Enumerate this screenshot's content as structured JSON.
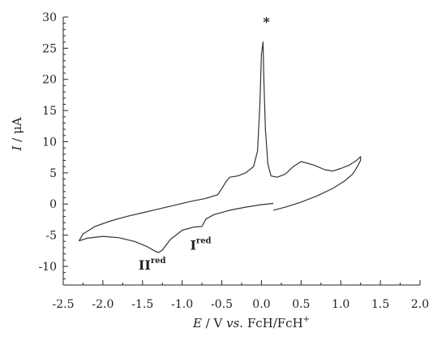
{
  "chart_data": {
    "type": "line",
    "title": "",
    "xlabel": {
      "italic": "E",
      "unit": " / V ",
      "vs": "vs",
      "ref": ". FcH/FcH",
      "sup": "+"
    },
    "ylabel": {
      "italic": "I",
      "unit": " / μA"
    },
    "xlim": [
      -2.5,
      2.0
    ],
    "ylim": [
      -13,
      30
    ],
    "xticks": [
      -2.5,
      -2.0,
      -1.5,
      -1.0,
      -0.5,
      0.0,
      0.5,
      1.0,
      1.5,
      2.0
    ],
    "xtick_labels": [
      "-2.5",
      "-2.0",
      "-1.5",
      "-1.0",
      "-0.5",
      "0.0",
      "0.5",
      "1.0",
      "1.5",
      "2.0"
    ],
    "yticks": [
      -10,
      -5,
      0,
      5,
      10,
      15,
      20,
      25,
      30
    ],
    "ytick_labels": [
      "-10",
      "-5",
      "0",
      "5",
      "10",
      "15",
      "20",
      "25",
      "30"
    ],
    "grid": false,
    "series": [
      {
        "color": "#333333",
        "x": [
          0.15,
          0.3,
          0.5,
          0.7,
          0.9,
          1.05,
          1.15,
          1.2,
          1.25,
          1.25,
          1.2,
          1.1,
          1.0,
          0.9,
          0.8,
          0.65,
          0.5,
          0.4,
          0.3,
          0.2,
          0.12,
          0.08,
          0.05,
          0.03,
          0.02,
          0.0,
          -0.02,
          -0.05,
          -0.1,
          -0.2,
          -0.3,
          -0.4,
          -0.45,
          -0.55,
          -0.7,
          -0.9,
          -1.1,
          -1.3,
          -1.5,
          -1.7,
          -1.9,
          -2.1,
          -2.25,
          -2.3,
          -2.2,
          -2.0,
          -1.8,
          -1.6,
          -1.45,
          -1.35,
          -1.3,
          -1.25,
          -1.15,
          -1.0,
          -0.85,
          -0.75,
          -0.7,
          -0.6,
          -0.4,
          -0.2,
          0.0,
          0.15
        ],
        "y": [
          -1.0,
          -0.5,
          0.3,
          1.3,
          2.5,
          3.7,
          4.8,
          5.8,
          7.0,
          7.6,
          7.0,
          6.2,
          5.7,
          5.3,
          5.5,
          6.3,
          6.8,
          6.0,
          4.8,
          4.3,
          4.5,
          6.5,
          12.0,
          20.0,
          26.0,
          24.0,
          16.0,
          8.5,
          6.0,
          5.0,
          4.5,
          4.3,
          3.5,
          1.5,
          0.9,
          0.4,
          -0.2,
          -0.8,
          -1.4,
          -2.0,
          -2.7,
          -3.6,
          -4.8,
          -5.9,
          -5.5,
          -5.2,
          -5.4,
          -6.0,
          -6.8,
          -7.5,
          -7.8,
          -7.4,
          -5.7,
          -4.2,
          -3.7,
          -3.6,
          -2.4,
          -1.7,
          -1.0,
          -0.5,
          -0.1,
          0.1
        ]
      }
    ],
    "annotations": [
      {
        "text": "*",
        "x": 0.02,
        "y": 28.5
      },
      {
        "text": "I",
        "sup": "red",
        "x": -0.9,
        "y": -7.3
      },
      {
        "text": "II",
        "sup": "red",
        "x": -1.55,
        "y": -10.5
      }
    ]
  }
}
